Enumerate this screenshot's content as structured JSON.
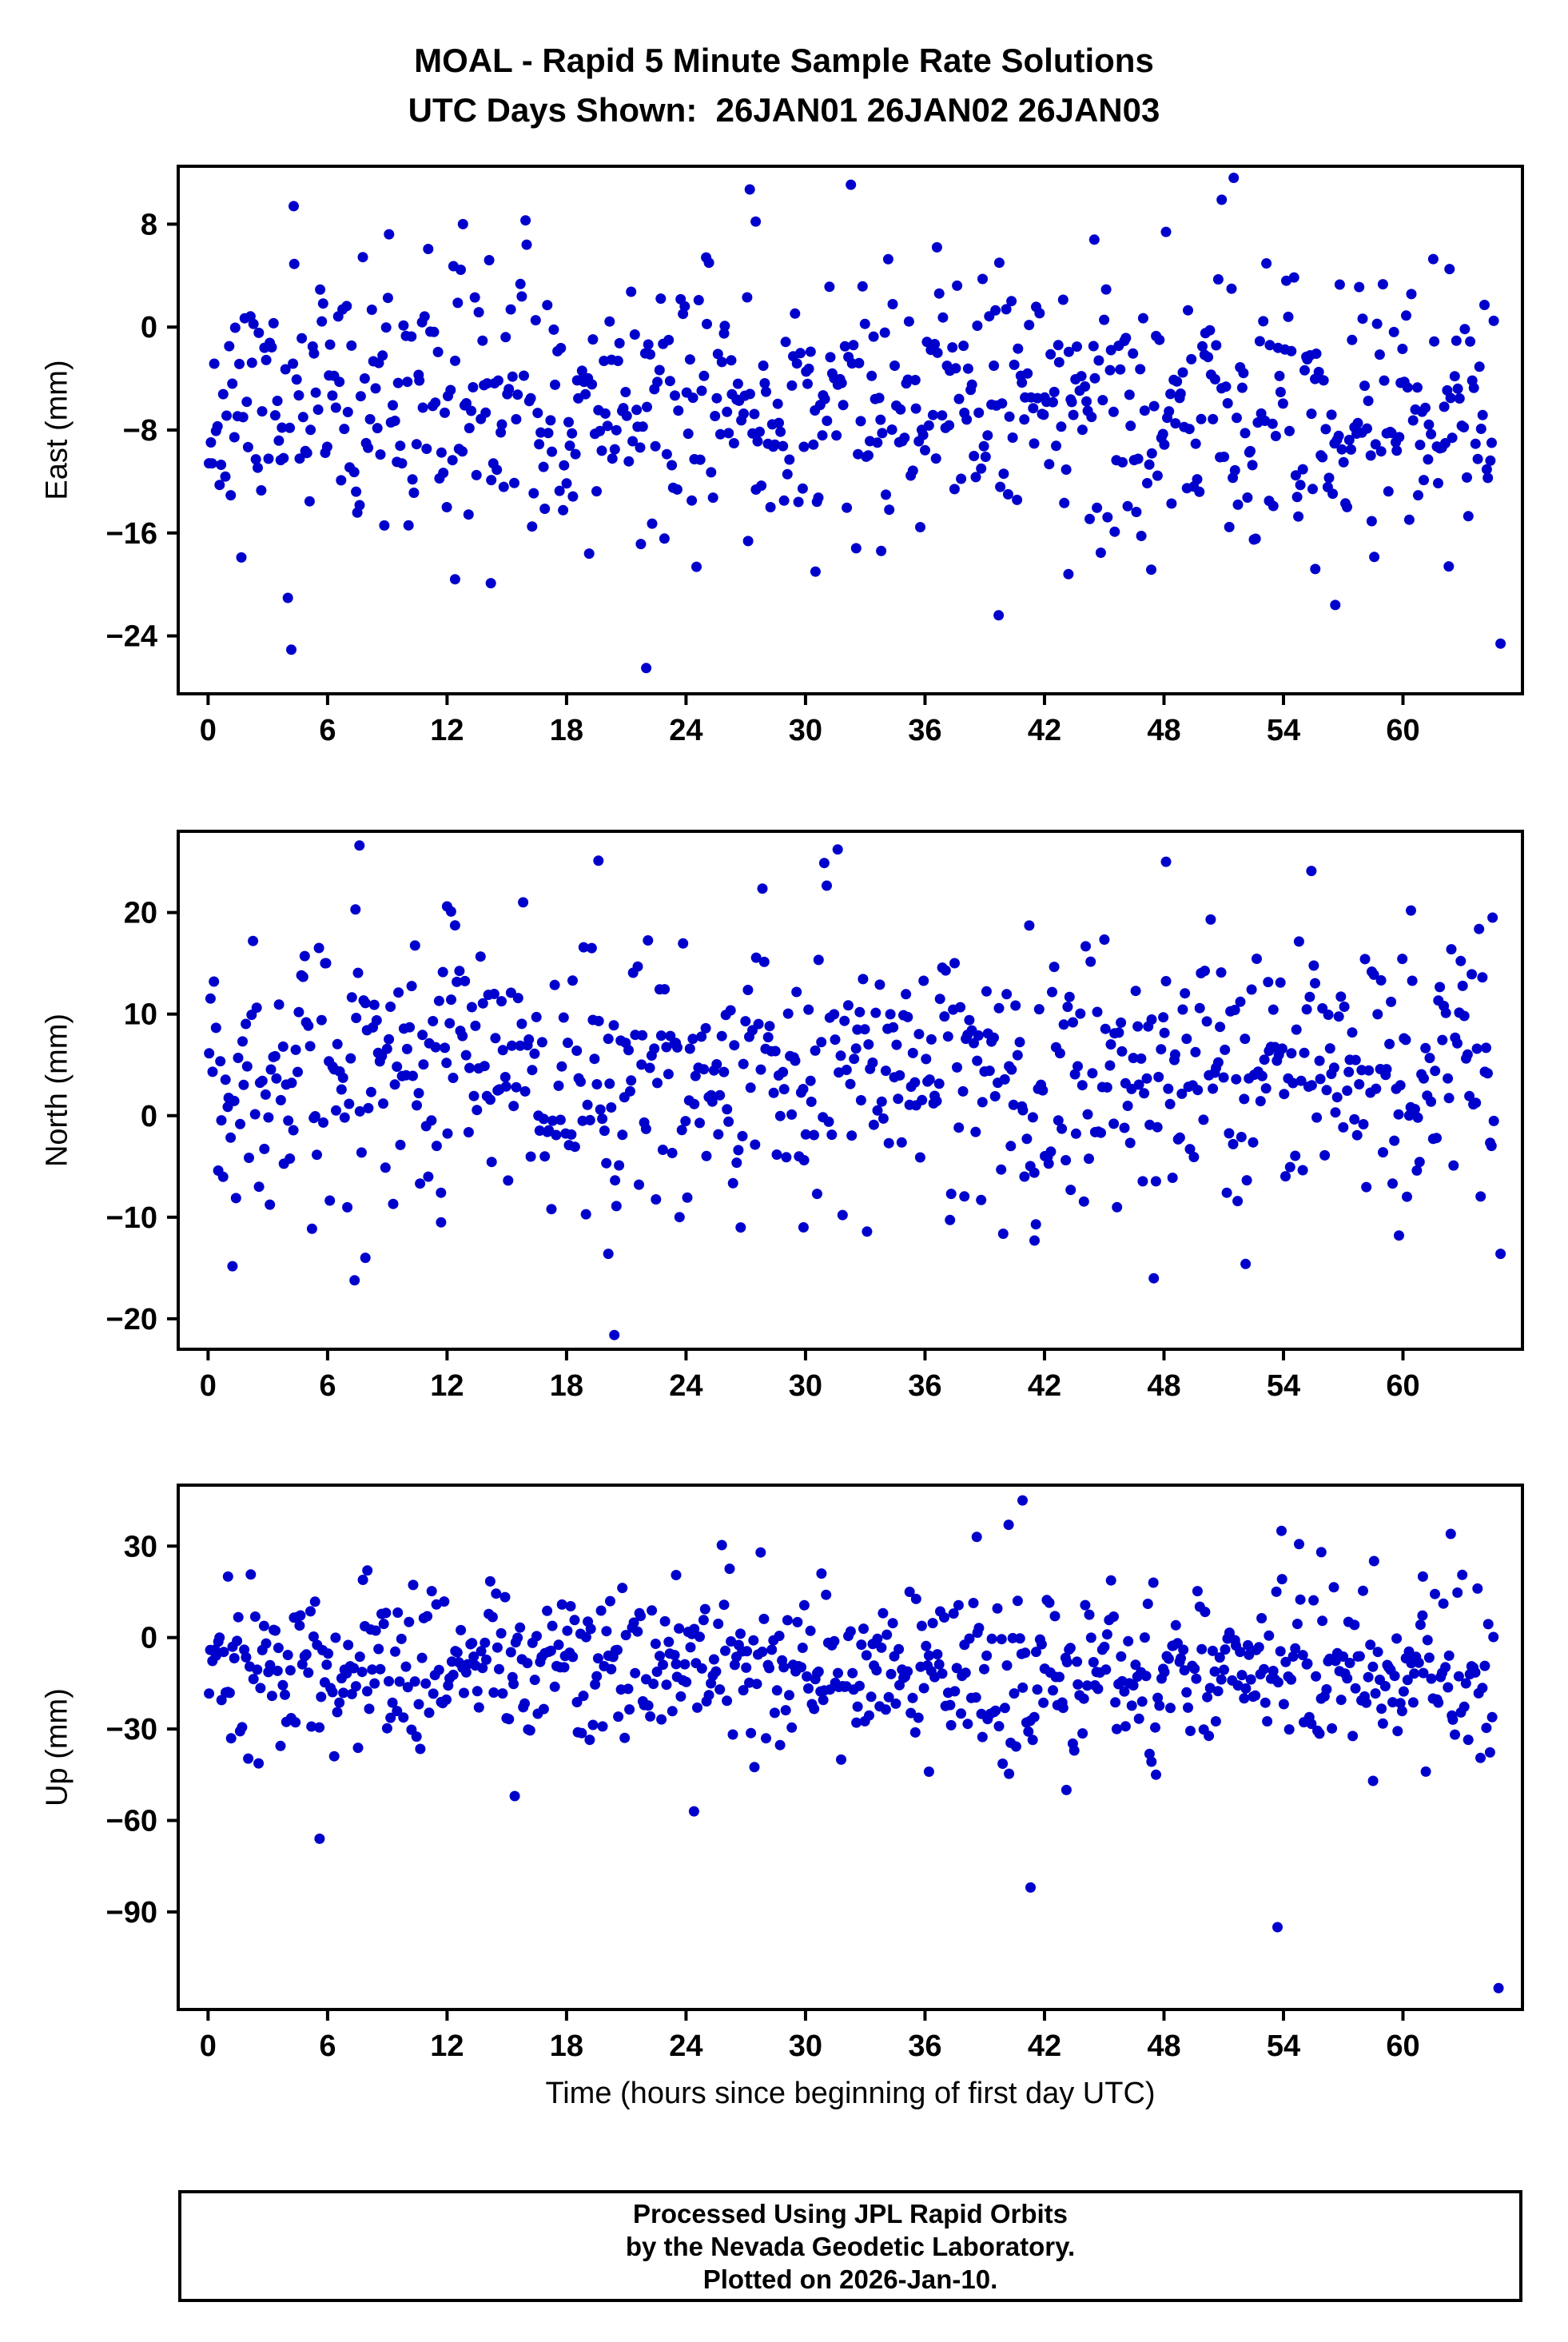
{
  "title": {
    "line1": "MOAL - Rapid 5 Minute Sample Rate Solutions",
    "line2": "UTC Days Shown:  26JAN01 26JAN02 26JAN03"
  },
  "xlabel": "Time (hours since beginning of first day UTC)",
  "footer": {
    "line1": "Processed Using JPL Rapid Orbits",
    "line2": "by the Nevada Geodetic Laboratory.",
    "line3": "Plotted on 2026-Jan-10."
  },
  "chart_data": [
    {
      "type": "scatter",
      "name": "east",
      "ylabel": "East (mm)",
      "xlabel": "Time (hours since beginning of first day UTC)",
      "xlim": [
        -1.5,
        66
      ],
      "ylim": [
        -28.5,
        12.5
      ],
      "xticks": [
        0,
        6,
        12,
        18,
        24,
        30,
        36,
        42,
        48,
        54,
        60
      ],
      "yticks": [
        8,
        0,
        -8,
        -16,
        -24
      ],
      "grid": false,
      "legend": false,
      "marker_color": "#0000cc",
      "marker_radius": 6.5,
      "n_points": 720,
      "x_range": [
        0,
        64.6
      ],
      "y_mean": -6.2,
      "y_std": 5.0,
      "seed": 11,
      "outliers": [
        [
          4.3,
          9.4
        ],
        [
          12.8,
          8.0
        ],
        [
          22.0,
          -26.5
        ],
        [
          51.5,
          11.6
        ],
        [
          50.9,
          9.9
        ],
        [
          27.2,
          10.7
        ],
        [
          27.5,
          8.2
        ],
        [
          39.7,
          -22.4
        ],
        [
          56.6,
          -21.6
        ],
        [
          64.9,
          -24.6
        ],
        [
          12.4,
          -19.6
        ],
        [
          14.2,
          -19.9
        ],
        [
          30.5,
          -19.0
        ],
        [
          33.8,
          -17.4
        ],
        [
          43.2,
          -19.2
        ],
        [
          55.6,
          -18.8
        ],
        [
          62.3,
          -18.6
        ],
        [
          48.1,
          7.4
        ],
        [
          44.5,
          6.8
        ],
        [
          36.6,
          6.2
        ]
      ]
    },
    {
      "type": "scatter",
      "name": "north",
      "ylabel": "North (mm)",
      "xlabel": "Time (hours since beginning of first day UTC)",
      "xlim": [
        -1.5,
        66
      ],
      "ylim": [
        -23,
        28
      ],
      "xticks": [
        0,
        6,
        12,
        18,
        24,
        30,
        36,
        42,
        48,
        54,
        60
      ],
      "yticks": [
        20,
        10,
        0,
        -10,
        -20
      ],
      "grid": false,
      "legend": false,
      "marker_color": "#0000cc",
      "marker_radius": 6.5,
      "n_points": 700,
      "x_range": [
        0,
        64.6
      ],
      "y_mean": 4.5,
      "y_std": 6.2,
      "seed": 22,
      "outliers": [
        [
          7.6,
          26.6
        ],
        [
          19.6,
          25.1
        ],
        [
          20.4,
          -21.6
        ],
        [
          48.1,
          25.0
        ],
        [
          55.4,
          24.1
        ],
        [
          7.9,
          -14.0
        ],
        [
          20.1,
          -13.6
        ],
        [
          52.1,
          -14.6
        ],
        [
          64.9,
          -13.6
        ],
        [
          11.7,
          -10.5
        ],
        [
          29.9,
          -11.0
        ],
        [
          41.5,
          -12.3
        ],
        [
          59.8,
          -11.8
        ],
        [
          12.0,
          20.6
        ],
        [
          12.2,
          20.1
        ],
        [
          7.4,
          20.3
        ],
        [
          60.4,
          20.2
        ],
        [
          64.5,
          19.5
        ]
      ]
    },
    {
      "type": "scatter",
      "name": "up",
      "ylabel": "Up (mm)",
      "xlabel": "Time (hours since beginning of first day UTC)",
      "xlim": [
        -1.5,
        66
      ],
      "ylim": [
        -122,
        50
      ],
      "xticks": [
        0,
        6,
        12,
        18,
        24,
        30,
        36,
        42,
        48,
        54,
        60
      ],
      "yticks": [
        30,
        0,
        -30,
        -60,
        -90
      ],
      "grid": false,
      "legend": false,
      "marker_color": "#0000cc",
      "marker_radius": 6.5,
      "n_points": 700,
      "x_range": [
        0,
        64.6
      ],
      "y_mean": -11.0,
      "y_std": 13.0,
      "seed": 33,
      "outliers": [
        [
          40.9,
          45.0
        ],
        [
          38.6,
          33.0
        ],
        [
          40.2,
          37.0
        ],
        [
          53.9,
          35.0
        ],
        [
          62.4,
          34.0
        ],
        [
          41.3,
          -82.0
        ],
        [
          53.7,
          -95.0
        ],
        [
          64.8,
          -115.0
        ],
        [
          5.6,
          -66.0
        ],
        [
          24.4,
          -57.0
        ],
        [
          15.4,
          -52.0
        ],
        [
          47.6,
          -45.0
        ],
        [
          43.1,
          -50.0
        ],
        [
          36.2,
          -44.0
        ],
        [
          58.5,
          -47.0
        ],
        [
          1.0,
          20.0
        ],
        [
          8.0,
          22.0
        ],
        [
          23.5,
          20.5
        ],
        [
          30.8,
          21.0
        ],
        [
          55.9,
          28.0
        ],
        [
          61.0,
          20.0
        ]
      ]
    }
  ]
}
